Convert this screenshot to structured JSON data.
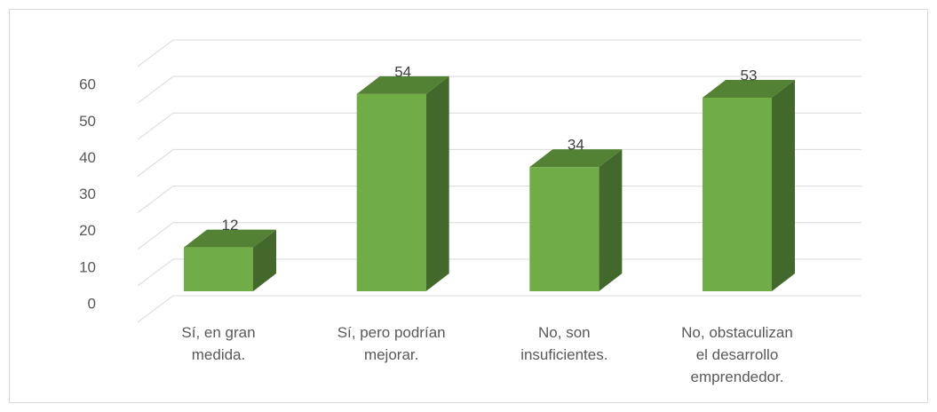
{
  "chart_data": {
    "type": "bar3d",
    "categories": [
      "Sí, en gran\nmedida.",
      "Sí, pero podrían\nmejorar.",
      "No, son\ninsuficientes.",
      "No, obstaculizan\nel desarrollo\nemprendedor."
    ],
    "values": [
      12,
      54,
      34,
      53
    ],
    "color": "#70ad47",
    "ylim": [
      0,
      70
    ],
    "yticks": [
      0,
      10,
      20,
      30,
      40,
      50,
      60
    ],
    "grid": true
  }
}
